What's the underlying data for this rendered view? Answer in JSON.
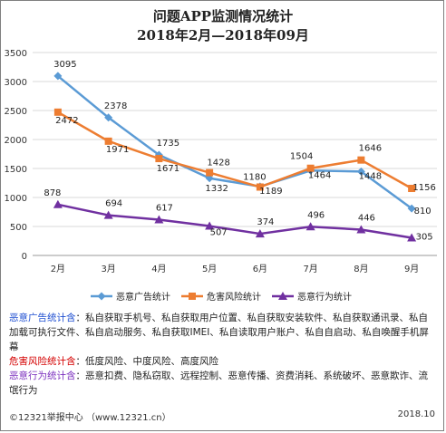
{
  "title_line1": "问题APP监测情况统计",
  "title_line2": "2018年2月—2018年09月",
  "chart_data": {
    "type": "line",
    "categories": [
      "2月",
      "3月",
      "4月",
      "5月",
      "6月",
      "7月",
      "8月",
      "9月"
    ],
    "ylim": [
      0,
      3500
    ],
    "yticks": [
      "0",
      "500",
      "1000",
      "1500",
      "2000",
      "2500",
      "3000",
      "3500"
    ],
    "grid": true,
    "legend_position": "bottom",
    "series": [
      {
        "name": "恶意广告统计",
        "color": "#5b9bd5",
        "marker": "diamond",
        "values": [
          3095,
          2378,
          1735,
          1332,
          1189,
          1464,
          1448,
          810
        ],
        "labels": [
          "3095",
          "2378",
          "1735",
          "1332",
          "1189",
          "1464",
          "1448",
          "810"
        ]
      },
      {
        "name": "危害风险统计",
        "color": "#ed7d31",
        "marker": "square",
        "values": [
          2472,
          1971,
          1671,
          1428,
          1180,
          1504,
          1646,
          1156
        ],
        "labels": [
          "2472",
          "1971",
          "1671",
          "1428",
          "1180",
          "1504",
          "1646",
          "1156"
        ]
      },
      {
        "name": "恶意行为统计",
        "color": "#7030a0",
        "marker": "triangle",
        "values": [
          878,
          694,
          617,
          507,
          374,
          496,
          446,
          305
        ],
        "labels": [
          "878",
          "694",
          "617",
          "507",
          "374",
          "496",
          "446",
          "305"
        ]
      }
    ]
  },
  "notes": {
    "ad_key": "恶意广告统计含",
    "ad_text": "：私自获取手机号、私自获取用户位置、私自获取安装软件、私自获取通讯录、私自加载可执行文件、私自启动服务、私自获取IMEI、私自读取用户账户、私自自启动、私自唤醒手机屏幕",
    "risk_key": "危害风险统计含",
    "risk_text": "：低度风险、中度风险、高度风险",
    "behavior_key": "恶意行为统计含",
    "behavior_text": "：恶意扣费、隐私窃取、远程控制、恶意传播、资费消耗、系统破坏、恶意欺诈、流氓行为"
  },
  "footer": {
    "copyright": "©12321举报中心 （www.12321.cn）",
    "date": "2018.10"
  }
}
